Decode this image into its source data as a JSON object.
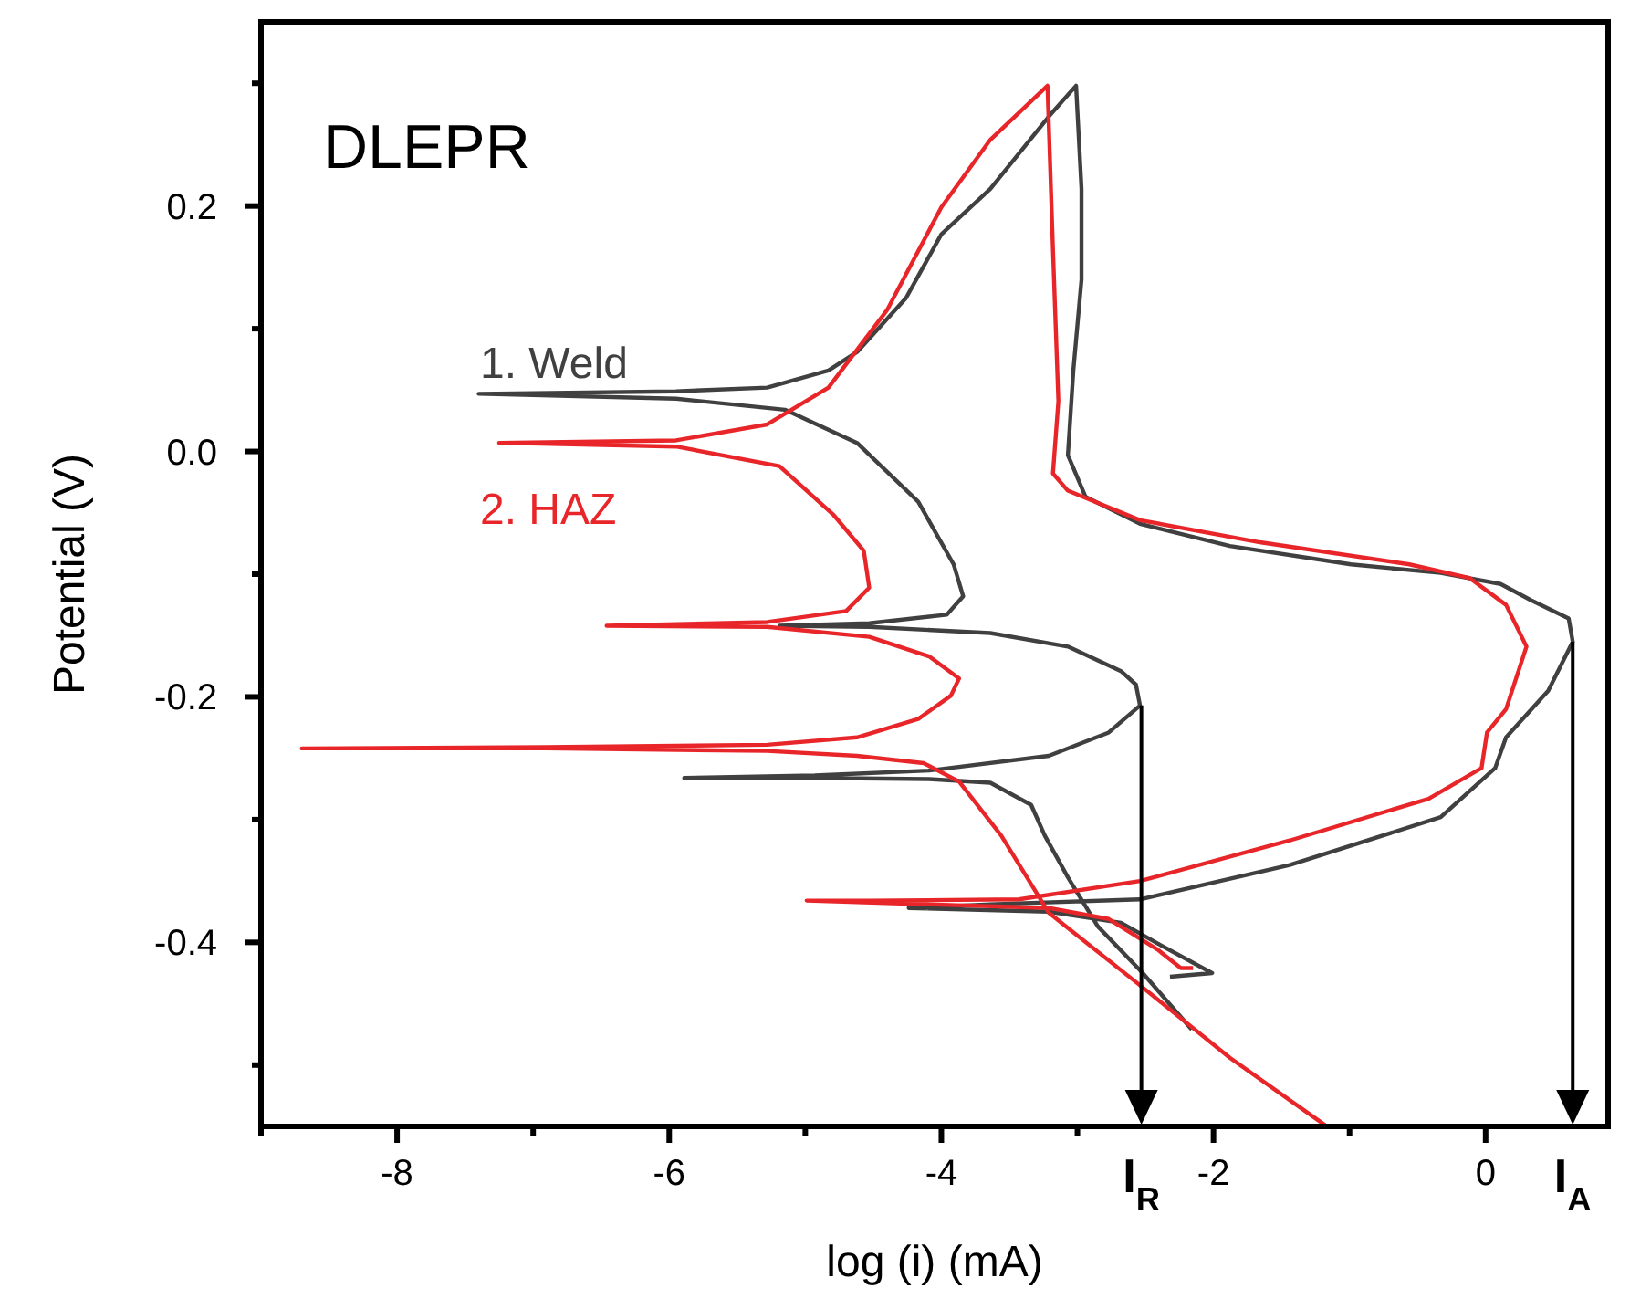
{
  "chart_data": {
    "type": "line",
    "title": "DLEPR",
    "xlabel": "log (i) (mA)",
    "ylabel": "Potential (V)",
    "xlim": [
      -9,
      0.9
    ],
    "ylim": [
      -0.55,
      0.35
    ],
    "xticks": [
      {
        "value": -9,
        "label": null
      },
      -8,
      {
        "value": -7,
        "label": null
      },
      -6,
      {
        "value": -5,
        "label": null
      },
      -4,
      {
        "value": -3,
        "label": null
      },
      -2,
      {
        "value": -1,
        "label": null
      },
      0
    ],
    "yticks": [
      {
        "value": -0.5,
        "label": null
      },
      -0.4,
      {
        "value": -0.3,
        "label": null
      },
      -0.2,
      {
        "value": -0.1,
        "label": null
      },
      {
        "value": 0,
        "label": "0.0"
      },
      {
        "value": 0.1,
        "label": null
      },
      0.2,
      {
        "value": 0.3,
        "label": null
      }
    ],
    "series": [
      {
        "name": "1. Weld",
        "color": "#404040",
        "x": [
          -2.16,
          -2.52,
          -2.85,
          -3.07,
          -3.24,
          -3.34,
          -3.64,
          -4.09,
          -4.93,
          -5.89,
          -4.93,
          -4.09,
          -3.21,
          -2.77,
          -2.54,
          -2.57,
          -2.68,
          -3.07,
          -3.64,
          -4.53,
          -5.19,
          -4.53,
          -3.96,
          -3.84,
          -3.91,
          -4.17,
          -4.62,
          -5.15,
          -5.95,
          -7.4,
          -5.95,
          -5.28,
          -4.83,
          -4.62,
          -4.26,
          -4.0,
          -3.64,
          -3.21,
          -3.01,
          -2.97,
          -2.97,
          -3.03,
          -3.07,
          -2.94,
          -2.54,
          -1.88,
          -0.99,
          -0.33,
          0.11,
          0.33,
          0.61,
          0.64,
          0.46,
          0.15,
          0.07,
          -0.33,
          -1.44,
          -2.54,
          -3.64,
          -4.24,
          -3.21,
          -2.68,
          -2.41,
          -2.01,
          -2.32
        ],
        "values": [
          -0.471,
          -0.425,
          -0.387,
          -0.347,
          -0.313,
          -0.288,
          -0.27,
          -0.267,
          -0.266,
          -0.266,
          -0.264,
          -0.26,
          -0.248,
          -0.229,
          -0.207,
          -0.19,
          -0.179,
          -0.159,
          -0.148,
          -0.143,
          -0.142,
          -0.14,
          -0.133,
          -0.118,
          -0.092,
          -0.041,
          0.007,
          0.034,
          0.043,
          0.047,
          0.049,
          0.052,
          0.066,
          0.081,
          0.125,
          0.177,
          0.214,
          0.273,
          0.298,
          0.214,
          0.14,
          0.066,
          -0.003,
          -0.037,
          -0.059,
          -0.077,
          -0.092,
          -0.099,
          -0.108,
          -0.121,
          -0.136,
          -0.155,
          -0.195,
          -0.233,
          -0.258,
          -0.298,
          -0.337,
          -0.365,
          -0.369,
          -0.372,
          -0.375,
          -0.384,
          -0.401,
          -0.425,
          -0.428
        ]
      },
      {
        "name": "2. HAZ",
        "color": "#e8262a",
        "x": [
          -1.18,
          -1.88,
          -2.54,
          -3.21,
          -3.56,
          -3.87,
          -4.13,
          -4.62,
          -5.28,
          -6.91,
          -8.7,
          -6.91,
          -5.28,
          -4.62,
          -4.17,
          -3.93,
          -3.87,
          -4.09,
          -4.53,
          -5.28,
          -6.46,
          -5.28,
          -4.7,
          -4.53,
          -4.57,
          -4.79,
          -5.19,
          -5.95,
          -7.25,
          -5.95,
          -5.28,
          -4.83,
          -4.4,
          -4.0,
          -3.64,
          -3.22,
          -3.18,
          -3.14,
          -3.18,
          -3.07,
          -2.54,
          -1.66,
          -0.56,
          -0.12,
          0.15,
          0.3,
          0.15,
          0.01,
          -0.03,
          -0.42,
          -1.44,
          -2.54,
          -3.43,
          -4.53,
          -4.99,
          -3.21,
          -2.77,
          -2.41,
          -2.24,
          -2.15
        ],
        "values": [
          -0.549,
          -0.494,
          -0.435,
          -0.376,
          -0.313,
          -0.269,
          -0.254,
          -0.248,
          -0.244,
          -0.242,
          -0.242,
          -0.241,
          -0.239,
          -0.233,
          -0.218,
          -0.199,
          -0.185,
          -0.167,
          -0.151,
          -0.143,
          -0.142,
          -0.139,
          -0.13,
          -0.111,
          -0.081,
          -0.052,
          -0.012,
          0.004,
          0.007,
          0.009,
          0.022,
          0.052,
          0.115,
          0.199,
          0.254,
          0.298,
          0.165,
          0.041,
          -0.018,
          -0.032,
          -0.056,
          -0.074,
          -0.092,
          -0.103,
          -0.125,
          -0.159,
          -0.21,
          -0.229,
          -0.258,
          -0.283,
          -0.317,
          -0.35,
          -0.365,
          -0.366,
          -0.366,
          -0.372,
          -0.381,
          -0.406,
          -0.421,
          -0.421
        ]
      }
    ],
    "annotations": [
      {
        "text": "I$_{R}$",
        "x": -2.53
      },
      {
        "text": "I$_{A}$",
        "x": 0.64
      }
    ]
  }
}
